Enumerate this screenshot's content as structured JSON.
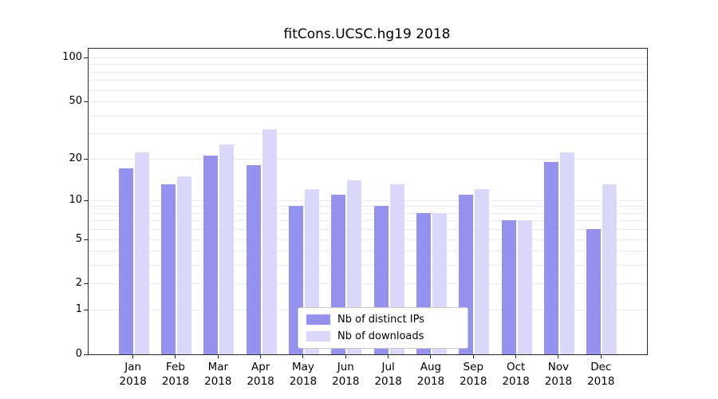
{
  "chart_data": {
    "type": "bar",
    "title": "fitCons.UCSC.hg19 2018",
    "categories": [
      "Jan",
      "Feb",
      "Mar",
      "Apr",
      "May",
      "Jun",
      "Jul",
      "Aug",
      "Sep",
      "Oct",
      "Nov",
      "Dec"
    ],
    "year": "2018",
    "series": [
      {
        "name": "Nb of distinct IPs",
        "color": "#9492ec",
        "values": [
          17,
          13,
          21,
          18,
          9,
          11,
          9,
          8,
          11,
          7,
          19,
          6
        ]
      },
      {
        "name": "Nb of downloads",
        "color": "#dad8f8",
        "values": [
          22,
          15,
          25,
          32,
          12,
          14,
          13,
          8,
          12,
          7,
          22,
          13
        ]
      }
    ],
    "y_ticks": [
      0,
      1,
      2,
      5,
      10,
      20,
      50,
      100
    ],
    "grid_values": [
      1,
      2,
      3,
      4,
      5,
      6,
      7,
      8,
      9,
      10,
      20,
      30,
      40,
      50,
      60,
      70,
      80,
      90,
      100
    ],
    "scale": "log10(1+x)",
    "ylim": [
      0,
      115
    ],
    "xlabel": "",
    "ylabel": "",
    "legend_position": "bottom-center-inside",
    "grid": "horizontal"
  }
}
